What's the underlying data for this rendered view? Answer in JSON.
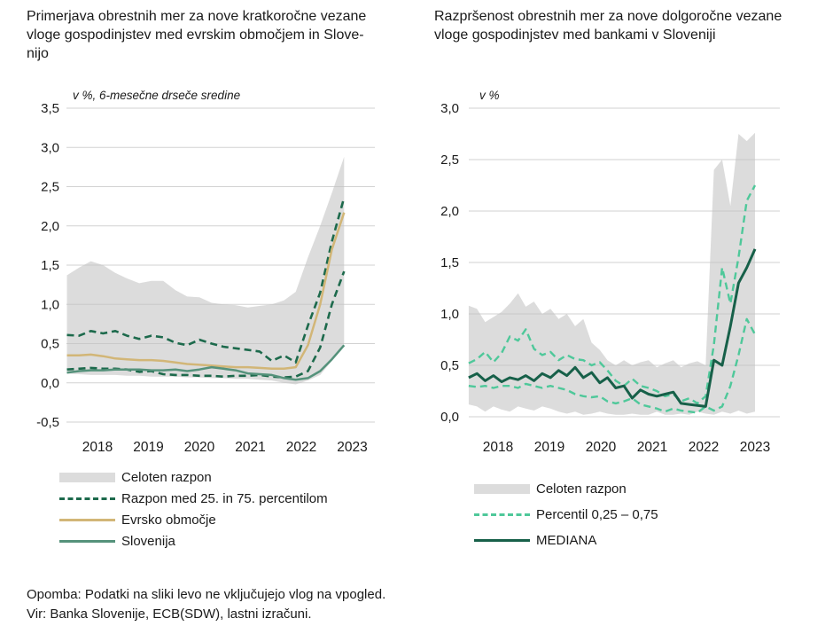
{
  "chart_data": [
    {
      "type": "line",
      "title": "Primerjava obrestnih mer za nove kratkoročne vezane\nvloge gospodinjstev med evrskim območjem in Slove-\nnijo",
      "subtitle": "v %, 6-mesečne drseče sredine",
      "xlabel": "",
      "ylabel": "v %",
      "ylim": [
        -0.5,
        3.5
      ],
      "grid": true,
      "legend_position": "bottom-left",
      "x_ticks": [
        2018,
        2019,
        2020,
        2021,
        2022,
        2023
      ],
      "y_tick_labels": [
        "3,5",
        "3,0",
        "2,5",
        "2,0",
        "1,5",
        "1,0",
        "0,5",
        "0,0",
        "-0,5"
      ],
      "x": [
        2017.4,
        2017.64,
        2017.87,
        2018.11,
        2018.35,
        2018.58,
        2018.82,
        2019.06,
        2019.29,
        2019.53,
        2019.76,
        2020.0,
        2020.24,
        2020.47,
        2020.71,
        2020.95,
        2021.18,
        2021.42,
        2021.66,
        2021.89,
        2022.13,
        2022.37,
        2022.6,
        2022.84
      ],
      "series": [
        {
          "name": "Celoten razpon",
          "type": "band",
          "color": "#dcdcdc",
          "upper": [
            1.37,
            1.47,
            1.55,
            1.5,
            1.4,
            1.33,
            1.27,
            1.3,
            1.3,
            1.18,
            1.1,
            1.09,
            1.02,
            1.0,
            0.99,
            0.96,
            0.98,
            1.0,
            1.05,
            1.16,
            1.6,
            2.0,
            2.42,
            2.88
          ],
          "lower": [
            0.12,
            0.11,
            0.1,
            0.1,
            0.1,
            0.09,
            0.09,
            0.08,
            0.08,
            0.08,
            0.07,
            0.07,
            0.06,
            0.06,
            0.05,
            0.05,
            0.04,
            0.03,
            0.0,
            -0.02,
            0.03,
            0.1,
            0.28,
            0.5
          ]
        },
        {
          "name": "75. percentil",
          "type": "line",
          "dashed": true,
          "width": 2.6,
          "color": "#1d6a4c",
          "values": [
            0.61,
            0.6,
            0.66,
            0.63,
            0.66,
            0.6,
            0.56,
            0.6,
            0.58,
            0.51,
            0.48,
            0.55,
            0.5,
            0.46,
            0.44,
            0.42,
            0.4,
            0.28,
            0.35,
            0.26,
            0.73,
            1.15,
            1.8,
            2.36
          ]
        },
        {
          "name": "25. percentil",
          "type": "line",
          "dashed": true,
          "width": 2.6,
          "color": "#1d6a4c",
          "values": [
            0.17,
            0.18,
            0.19,
            0.18,
            0.18,
            0.17,
            0.14,
            0.15,
            0.11,
            0.1,
            0.1,
            0.09,
            0.09,
            0.08,
            0.09,
            0.09,
            0.1,
            0.08,
            0.07,
            0.08,
            0.15,
            0.45,
            1.0,
            1.42
          ]
        },
        {
          "name": "Evrsko območje",
          "type": "line",
          "dashed": false,
          "width": 2.5,
          "color": "#d2b677",
          "values": [
            0.35,
            0.35,
            0.36,
            0.34,
            0.31,
            0.3,
            0.29,
            0.29,
            0.28,
            0.26,
            0.24,
            0.23,
            0.22,
            0.21,
            0.2,
            0.2,
            0.19,
            0.18,
            0.18,
            0.2,
            0.48,
            1.0,
            1.7,
            2.17
          ]
        },
        {
          "name": "Slovenija",
          "type": "line",
          "dashed": false,
          "width": 2.5,
          "color": "#55927b",
          "values": [
            0.13,
            0.15,
            0.16,
            0.16,
            0.17,
            0.17,
            0.17,
            0.16,
            0.16,
            0.17,
            0.15,
            0.17,
            0.2,
            0.18,
            0.16,
            0.12,
            0.11,
            0.1,
            0.06,
            0.04,
            0.06,
            0.15,
            0.3,
            0.48
          ]
        }
      ],
      "legend": [
        {
          "label": "Celoten razpon",
          "swatch": "area",
          "color": "#dcdcdc"
        },
        {
          "label": "Razpon med 25. in 75. percentilom",
          "swatch": "dashed",
          "color": "#1d6a4c"
        },
        {
          "label": "Evrsko območje",
          "swatch": "solid",
          "color": "#d2b677"
        },
        {
          "label": "Slovenija",
          "swatch": "solid",
          "color": "#55927b"
        }
      ]
    },
    {
      "type": "line",
      "title": "Razpršenost obrestnih mer za nove dolgoročne vezane\nvloge gospodinjstev med bankami v Sloveniji",
      "subtitle": "v %",
      "xlabel": "",
      "ylabel": "v %",
      "ylim": [
        0.0,
        3.0
      ],
      "grid": true,
      "legend_position": "bottom-left",
      "x_ticks": [
        2018,
        2019,
        2020,
        2021,
        2022,
        2023
      ],
      "y_tick_labels": [
        "3,0",
        "2,5",
        "2,0",
        "1,5",
        "1,0",
        "0,5",
        "0,0"
      ],
      "x": [
        2017.43,
        2017.59,
        2017.75,
        2017.91,
        2018.07,
        2018.23,
        2018.39,
        2018.54,
        2018.7,
        2018.86,
        2019.02,
        2019.18,
        2019.34,
        2019.5,
        2019.66,
        2019.82,
        2019.98,
        2020.13,
        2020.29,
        2020.45,
        2020.61,
        2020.77,
        2020.93,
        2021.09,
        2021.25,
        2021.41,
        2021.56,
        2021.72,
        2021.88,
        2022.04,
        2022.2,
        2022.36,
        2022.52,
        2022.68,
        2022.84,
        2023.0
      ],
      "series": [
        {
          "name": "Celoten razpon",
          "type": "band",
          "color": "#dcdcdc",
          "upper": [
            1.08,
            1.05,
            0.92,
            0.97,
            1.02,
            1.1,
            1.2,
            1.07,
            1.12,
            1.0,
            1.05,
            0.95,
            1.0,
            0.88,
            0.95,
            0.72,
            0.65,
            0.55,
            0.5,
            0.55,
            0.5,
            0.53,
            0.55,
            0.48,
            0.52,
            0.55,
            0.48,
            0.52,
            0.54,
            0.5,
            2.4,
            2.5,
            2.05,
            2.75,
            2.68,
            2.76
          ],
          "lower": [
            0.12,
            0.1,
            0.05,
            0.1,
            0.07,
            0.05,
            0.1,
            0.08,
            0.06,
            0.1,
            0.08,
            0.05,
            0.03,
            0.05,
            0.02,
            0.03,
            0.05,
            0.03,
            0.02,
            0.02,
            0.03,
            0.02,
            0.02,
            0.05,
            0.02,
            0.02,
            0.03,
            0.02,
            0.05,
            0.03,
            0.02,
            0.05,
            0.03,
            0.06,
            0.03,
            0.05
          ]
        },
        {
          "name": "Percentil 0,75",
          "type": "line",
          "dashed": true,
          "width": 2.4,
          "color": "#4fc89a",
          "values": [
            0.52,
            0.56,
            0.63,
            0.53,
            0.62,
            0.78,
            0.74,
            0.85,
            0.66,
            0.6,
            0.63,
            0.55,
            0.6,
            0.56,
            0.55,
            0.5,
            0.53,
            0.45,
            0.35,
            0.3,
            0.37,
            0.3,
            0.28,
            0.25,
            0.2,
            0.22,
            0.15,
            0.18,
            0.13,
            0.2,
            0.7,
            1.45,
            1.1,
            1.55,
            2.1,
            2.25
          ]
        },
        {
          "name": "Percentil 0,25",
          "type": "line",
          "dashed": true,
          "width": 2.4,
          "color": "#4fc89a",
          "values": [
            0.3,
            0.29,
            0.3,
            0.28,
            0.3,
            0.3,
            0.28,
            0.32,
            0.3,
            0.28,
            0.3,
            0.28,
            0.26,
            0.22,
            0.2,
            0.19,
            0.2,
            0.15,
            0.13,
            0.15,
            0.18,
            0.12,
            0.1,
            0.08,
            0.05,
            0.08,
            0.06,
            0.05,
            0.04,
            0.1,
            0.06,
            0.1,
            0.3,
            0.6,
            0.95,
            0.8
          ]
        },
        {
          "name": "MEDIANA",
          "type": "line",
          "dashed": false,
          "width": 3,
          "color": "#176049",
          "values": [
            0.38,
            0.42,
            0.35,
            0.4,
            0.34,
            0.38,
            0.36,
            0.4,
            0.35,
            0.42,
            0.38,
            0.45,
            0.4,
            0.48,
            0.38,
            0.43,
            0.33,
            0.38,
            0.28,
            0.3,
            0.18,
            0.26,
            0.22,
            0.2,
            0.22,
            0.24,
            0.13,
            0.12,
            0.11,
            0.1,
            0.55,
            0.5,
            0.88,
            1.3,
            1.45,
            1.63
          ]
        }
      ],
      "legend": [
        {
          "label": "Celoten razpon",
          "swatch": "area",
          "color": "#dcdcdc"
        },
        {
          "label": "Percentil 0,25 – 0,75",
          "swatch": "dashed",
          "color": "#4fc89a"
        },
        {
          "label": "MEDIANA",
          "swatch": "solid",
          "color": "#176049"
        }
      ]
    }
  ],
  "notes": {
    "opomba": "Opomba: Podatki na sliki levo ne vključujejo vlog na vpogled.",
    "vir": "Vir: Banka Slovenije, ECB(SDW), lastni izračuni."
  },
  "colors": {
    "gridline": "#c3c3c3",
    "text": "#1a1a1a",
    "band": "#dcdcdc"
  }
}
